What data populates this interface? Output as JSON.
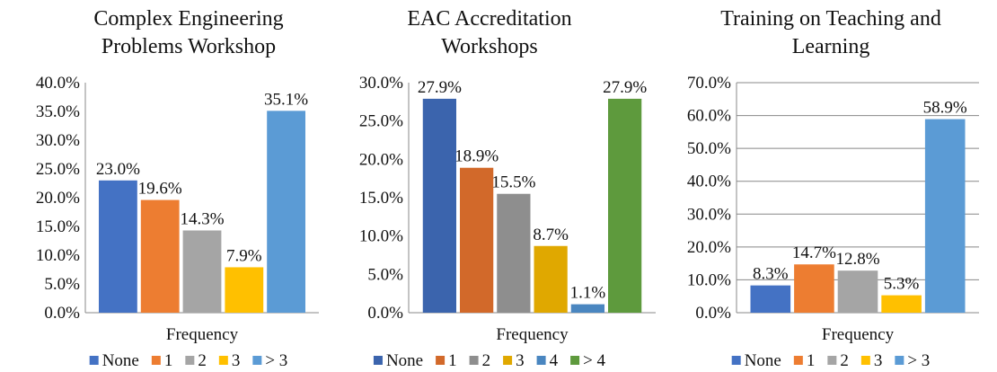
{
  "chart_data": [
    {
      "type": "bar",
      "title": [
        "Complex Engineering",
        "Problems Workshop"
      ],
      "x_label": "Frequency",
      "categories": [
        "Frequency"
      ],
      "ylim": [
        0,
        40
      ],
      "grid": false,
      "yticks": [
        {
          "value": 0,
          "label": "0.0%"
        },
        {
          "value": 5,
          "label": "5.0%"
        },
        {
          "value": 10,
          "label": "10.0%"
        },
        {
          "value": 15,
          "label": "15.0%"
        },
        {
          "value": 20,
          "label": "20.0%"
        },
        {
          "value": 25,
          "label": "25.0%"
        },
        {
          "value": 30,
          "label": "30.0%"
        },
        {
          "value": 35,
          "label": "35.0%"
        },
        {
          "value": 40,
          "label": "40.0%"
        }
      ],
      "series": [
        {
          "name": "None",
          "color": "#4472c4",
          "values": [
            23.0
          ],
          "value_labels": [
            "23.0%"
          ]
        },
        {
          "name": "1",
          "color": "#ed7d31",
          "values": [
            19.6
          ],
          "value_labels": [
            "19.6%"
          ]
        },
        {
          "name": "2",
          "color": "#a5a5a5",
          "values": [
            14.3
          ],
          "value_labels": [
            "14.3%"
          ]
        },
        {
          "name": "3",
          "color": "#ffc000",
          "values": [
            7.9
          ],
          "value_labels": [
            "7.9%"
          ]
        },
        {
          "name": ">  3",
          "color": "#5b9bd5",
          "values": [
            35.1
          ],
          "value_labels": [
            "35.1%"
          ]
        }
      ]
    },
    {
      "type": "bar",
      "title": [
        "EAC Accreditation",
        "Workshops"
      ],
      "x_label": "Frequency",
      "categories": [
        "Frequency"
      ],
      "ylim": [
        0,
        30
      ],
      "grid": false,
      "yticks": [
        {
          "value": 0,
          "label": "0.0%"
        },
        {
          "value": 5,
          "label": "5.0%"
        },
        {
          "value": 10,
          "label": "10.0%"
        },
        {
          "value": 15,
          "label": "15.0%"
        },
        {
          "value": 20,
          "label": "20.0%"
        },
        {
          "value": 25,
          "label": "25.0%"
        },
        {
          "value": 30,
          "label": "30.0%"
        }
      ],
      "series": [
        {
          "name": "None",
          "color": "#3b64ad",
          "values": [
            27.9
          ],
          "value_labels": [
            "27.9%"
          ]
        },
        {
          "name": "1",
          "color": "#d2692a",
          "values": [
            18.9
          ],
          "value_labels": [
            "18.9%"
          ]
        },
        {
          "name": "2",
          "color": "#8e8e8e",
          "values": [
            15.5
          ],
          "value_labels": [
            "15.5%"
          ]
        },
        {
          "name": "3",
          "color": "#e0a800",
          "values": [
            8.7
          ],
          "value_labels": [
            "8.7%"
          ]
        },
        {
          "name": "4",
          "color": "#4a86c0",
          "values": [
            1.1
          ],
          "value_labels": [
            "1.1%"
          ]
        },
        {
          "name": "> 4",
          "color": "#5e9a3d",
          "values": [
            27.9
          ],
          "value_labels": [
            "27.9%"
          ]
        }
      ]
    },
    {
      "type": "bar",
      "title": [
        "Training on Teaching and",
        "Learning"
      ],
      "x_label": "Frequency",
      "categories": [
        "Frequency"
      ],
      "ylim": [
        0,
        70
      ],
      "grid": true,
      "yticks": [
        {
          "value": 0,
          "label": "0.0%"
        },
        {
          "value": 10,
          "label": "10.0%"
        },
        {
          "value": 20,
          "label": "20.0%"
        },
        {
          "value": 30,
          "label": "30.0%"
        },
        {
          "value": 40,
          "label": "40.0%"
        },
        {
          "value": 50,
          "label": "50.0%"
        },
        {
          "value": 60,
          "label": "60.0%"
        },
        {
          "value": 70,
          "label": "70.0%"
        }
      ],
      "series": [
        {
          "name": "None",
          "color": "#4472c4",
          "values": [
            8.3
          ],
          "value_labels": [
            "8.3%"
          ]
        },
        {
          "name": "1",
          "color": "#ed7d31",
          "values": [
            14.7
          ],
          "value_labels": [
            "14.7%"
          ]
        },
        {
          "name": "2",
          "color": "#a5a5a5",
          "values": [
            12.8
          ],
          "value_labels": [
            "12.8%"
          ]
        },
        {
          "name": "3",
          "color": "#ffc000",
          "values": [
            5.3
          ],
          "value_labels": [
            "5.3%"
          ]
        },
        {
          "name": "> 3",
          "color": "#5b9bd5",
          "values": [
            58.9
          ],
          "value_labels": [
            "58.9%"
          ]
        }
      ]
    }
  ]
}
